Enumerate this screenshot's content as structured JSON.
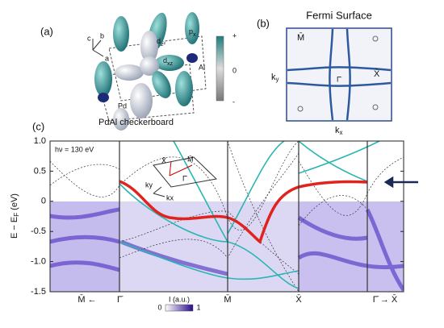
{
  "panel_a": {
    "label": "(a)",
    "axes": [
      "c",
      "b",
      "a"
    ],
    "orbitals": [
      {
        "main": "d",
        "sub": "z²"
      },
      {
        "main": "d",
        "sub": "xz"
      },
      {
        "main": "p",
        "sub": "x"
      }
    ],
    "atoms": [
      "Al",
      "Pd"
    ],
    "scale": [
      "+",
      "0",
      "-"
    ],
    "caption": "PdAl checkerboard"
  },
  "panel_b": {
    "label": "(b)",
    "title": "Fermi Surface",
    "points": [
      "M̄",
      "Γ̄",
      "X̄"
    ],
    "ky": {
      "main": "k",
      "sub": "y"
    },
    "kx": {
      "main": "k",
      "sub": "x"
    }
  },
  "chart_data": {
    "type": "line",
    "label": "(c)",
    "annotation": "hν = 130 eV",
    "ylabel": {
      "main": "E − E",
      "sub": "F",
      "unit": " (eV)"
    },
    "ylim": [
      -1.5,
      1
    ],
    "yticks": [
      {
        "value": 1,
        "label": "1.0"
      },
      0.5,
      0,
      -0.5,
      {
        "value": -1,
        "label": "-1.0"
      },
      -1.5
    ],
    "path_labels": [
      "M̄ ←",
      "Γ̄",
      "M̄",
      "X̄",
      "Γ̄ → X̄"
    ],
    "inset": [
      "X̄",
      "M̄",
      "Γ̄",
      "ky",
      "kx"
    ],
    "colorbar": {
      "label": "I (a.u.)",
      "min": "0",
      "max": "1"
    }
  }
}
